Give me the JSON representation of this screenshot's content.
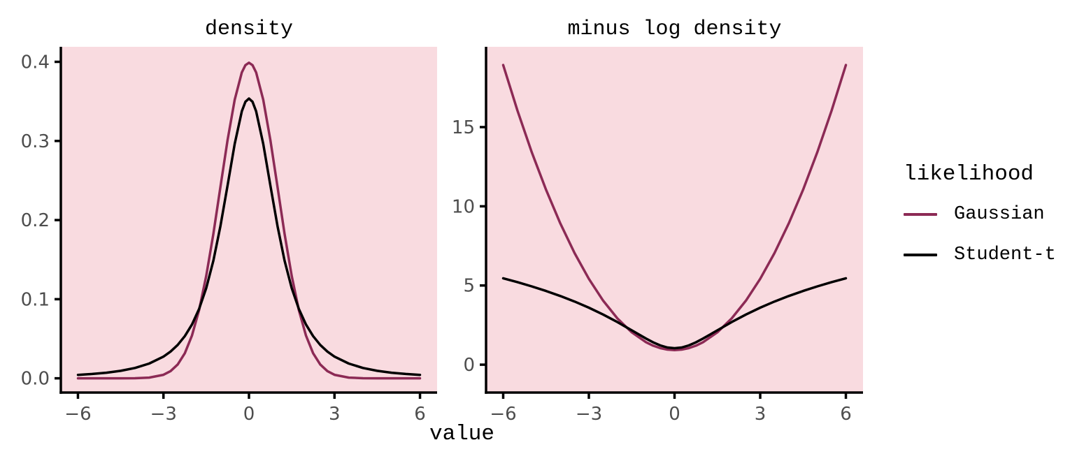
{
  "legend": {
    "title": "likelihood",
    "position": "right",
    "entries": [
      {
        "label": "Gaussian",
        "color": "#8C2A55"
      },
      {
        "label": "Student-t",
        "color": "#000000"
      }
    ]
  },
  "colors": {
    "panel_background": "#F9DBE0",
    "axis_line": "#000000",
    "tick_label": "#4D4D4D",
    "gaussian_line": "#8C2A55",
    "student_t_line": "#000000"
  },
  "chart_data": [
    {
      "type": "line",
      "title": "density",
      "xlabel": "value",
      "ylabel": "",
      "grid": false,
      "legend_position": "right",
      "panel_bg": "#F9DBE0",
      "xlim": [
        -6.6,
        6.6
      ],
      "ylim": [
        -0.018,
        0.419
      ],
      "xticks": [
        -6,
        -3,
        0,
        3,
        6
      ],
      "xtick_labels": [
        "−6",
        "−3",
        "0",
        "3",
        "6"
      ],
      "yticks": [
        0,
        0.1,
        0.2,
        0.3,
        0.4
      ],
      "ytick_labels": [
        "0.0",
        "0.1",
        "0.2",
        "0.3",
        "0.4"
      ],
      "x": [
        -6,
        -5.5,
        -5,
        -4.5,
        -4,
        -3.5,
        -3,
        -2.75,
        -2.5,
        -2.25,
        -2,
        -1.75,
        -1.5,
        -1.25,
        -1,
        -0.75,
        -0.5,
        -0.25,
        -0.125,
        0,
        0.125,
        0.25,
        0.5,
        0.75,
        1,
        1.25,
        1.5,
        1.75,
        2,
        2.25,
        2.5,
        2.75,
        3,
        3.5,
        4,
        4.5,
        5,
        5.5,
        6
      ],
      "series": [
        {
          "name": "Gaussian",
          "color": "#8C2A55",
          "y": [
            0,
            0,
            0,
            0,
            0.0001,
            0.0009,
            0.0044,
            0.0091,
            0.0175,
            0.0317,
            0.054,
            0.0863,
            0.1295,
            0.1826,
            0.242,
            0.3011,
            0.3521,
            0.3867,
            0.3958,
            0.3989,
            0.3958,
            0.3867,
            0.3521,
            0.3011,
            0.242,
            0.1826,
            0.1295,
            0.0863,
            0.054,
            0.0317,
            0.0175,
            0.0091,
            0.0044,
            0.0009,
            0.0001,
            0,
            0,
            0,
            0
          ]
        },
        {
          "name": "Student-t",
          "color": "#000000",
          "y": [
            0.0043,
            0.0055,
            0.0071,
            0.0095,
            0.0131,
            0.0186,
            0.0274,
            0.0338,
            0.0422,
            0.0533,
            0.068,
            0.0878,
            0.1141,
            0.1487,
            0.1925,
            0.2438,
            0.2963,
            0.3376,
            0.3495,
            0.3536,
            0.3495,
            0.3376,
            0.2963,
            0.2438,
            0.1925,
            0.1487,
            0.1141,
            0.0878,
            0.068,
            0.0533,
            0.0422,
            0.0338,
            0.0274,
            0.0186,
            0.0131,
            0.0095,
            0.0071,
            0.0055,
            0.0043
          ]
        }
      ]
    },
    {
      "type": "line",
      "title": "minus log density",
      "xlabel": "value",
      "ylabel": "",
      "grid": false,
      "legend_position": "right",
      "panel_bg": "#F9DBE0",
      "xlim": [
        -6.6,
        6.6
      ],
      "ylim": [
        -1.76,
        20.07
      ],
      "xticks": [
        -6,
        -3,
        0,
        3,
        6
      ],
      "xtick_labels": [
        "−6",
        "−3",
        "0",
        "3",
        "6"
      ],
      "yticks": [
        0,
        5,
        10,
        15
      ],
      "ytick_labels": [
        "0",
        "5",
        "10",
        "15"
      ],
      "x": [
        -6,
        -5.5,
        -5,
        -4.5,
        -4,
        -3.5,
        -3,
        -2.5,
        -2,
        -1.5,
        -1,
        -0.75,
        -0.5,
        -0.25,
        0,
        0.25,
        0.5,
        0.75,
        1,
        1.5,
        2,
        2.5,
        3,
        3.5,
        4,
        4.5,
        5,
        5.5,
        6
      ],
      "series": [
        {
          "name": "Gaussian",
          "color": "#8C2A55",
          "y": [
            18.9189,
            16.0439,
            13.4189,
            11.0439,
            8.9189,
            7.0439,
            5.4189,
            4.0439,
            2.9189,
            2.0439,
            1.4189,
            1.2002,
            1.0439,
            0.9502,
            0.9189,
            0.9502,
            1.0439,
            1.2002,
            1.4189,
            2.0439,
            2.9189,
            4.0439,
            5.4189,
            7.0439,
            8.9189,
            11.0439,
            13.4189,
            16.0439,
            18.9189
          ]
        },
        {
          "name": "Student-t",
          "color": "#000000",
          "y": [
            5.4564,
            5.2103,
            4.9438,
            4.6535,
            4.3356,
            3.9851,
            3.5968,
            3.1653,
            2.6876,
            2.1704,
            1.6479,
            1.4115,
            1.2164,
            1.0859,
            1.0397,
            1.0859,
            1.2164,
            1.4115,
            1.6479,
            2.1704,
            2.6876,
            3.1653,
            3.5968,
            3.9851,
            4.3356,
            4.6535,
            4.9438,
            5.2103,
            5.4564
          ]
        }
      ]
    }
  ]
}
